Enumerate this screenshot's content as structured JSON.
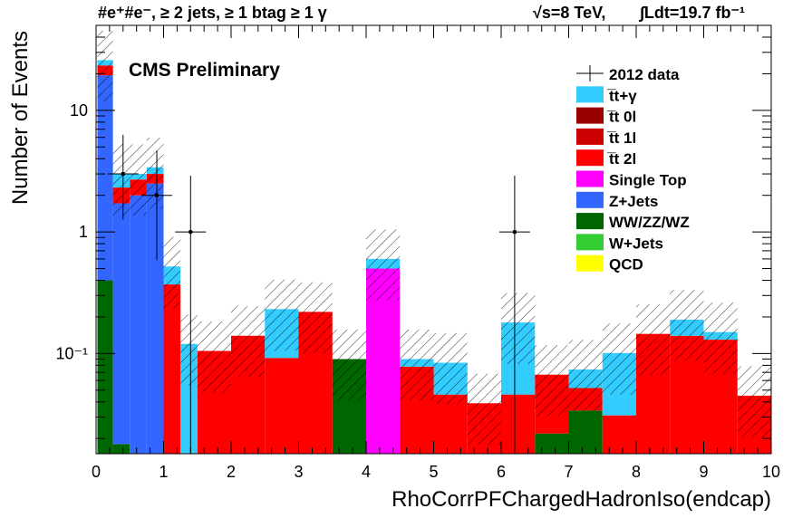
{
  "header": {
    "selection": "#e⁺#e⁻, ≥ 2 jets, ≥ 1 btag ≥ 1 γ",
    "energy": "√s=8 TeV,",
    "lumi": "∫Ldt=19.7 fb⁻¹"
  },
  "cms_label": "CMS Preliminary",
  "chart_data": {
    "type": "bar",
    "stacked": true,
    "log_y": true,
    "xlabel": "RhoCorrPFChargedHadronIso(endcap)",
    "ylabel": "Number of Events",
    "xlim": [
      0,
      10
    ],
    "ylim": [
      0.015,
      50
    ],
    "x_ticks": [
      "0",
      "1",
      "2",
      "3",
      "4",
      "5",
      "6",
      "7",
      "8",
      "9",
      "10"
    ],
    "y_ticks": [
      "10⁻¹",
      "1",
      "10"
    ],
    "y_tick_values": [
      0.1,
      1,
      10
    ],
    "bin_edges": [
      0,
      0.02,
      0.25,
      0.5,
      0.75,
      1.0,
      1.25,
      1.5,
      2.0,
      2.5,
      3.0,
      3.5,
      4.0,
      4.5,
      5.0,
      5.5,
      6.0,
      6.5,
      7.0,
      7.5,
      8.0,
      8.5,
      9.0,
      9.5,
      10.0
    ],
    "series": [
      {
        "name": "QCD",
        "color": "#ffff00",
        "values": [
          0,
          0,
          0,
          0,
          0,
          0,
          0,
          0,
          0,
          0,
          0,
          0,
          0,
          0,
          0,
          0,
          0,
          0,
          0,
          0,
          0,
          0,
          0,
          0
        ]
      },
      {
        "name": "W+Jets",
        "color": "#33cc33",
        "values": [
          0,
          0,
          0,
          0,
          0,
          0,
          0,
          0,
          0,
          0,
          0,
          0,
          0,
          0,
          0,
          0,
          0,
          0,
          0,
          0,
          0,
          0,
          0,
          0
        ]
      },
      {
        "name": "WW/ZZ/WZ",
        "color": "#006600",
        "values": [
          0,
          0.4,
          0.018,
          0,
          0,
          0,
          0,
          0,
          0,
          0,
          0,
          0.09,
          0,
          0,
          0,
          0,
          0,
          0.022,
          0.034,
          0,
          0,
          0,
          0,
          0
        ]
      },
      {
        "name": "Z+Jets",
        "color": "#3366ff",
        "values": [
          0,
          19,
          1.7,
          2.0,
          2.5,
          0,
          0,
          0,
          0,
          0,
          0,
          0,
          0,
          0,
          0,
          0,
          0,
          0,
          0,
          0,
          0,
          0,
          0,
          0
        ]
      },
      {
        "name": "Single Top",
        "color": "#ff00ff",
        "values": [
          0,
          0,
          0,
          0,
          0,
          0,
          0,
          0,
          0,
          0,
          0,
          0,
          0.5,
          0,
          0,
          0,
          0,
          0,
          0,
          0,
          0,
          0,
          0,
          0
        ]
      },
      {
        "name": "t̅t 2l",
        "color": "#ff0000",
        "values": [
          0,
          4,
          0.6,
          0.7,
          0.5,
          0.37,
          0,
          0.105,
          0.14,
          0.092,
          0.22,
          0,
          0,
          0.078,
          0.046,
          0.039,
          0.046,
          0.045,
          0.018,
          0.031,
          0.145,
          0.14,
          0.13,
          0.045
        ]
      },
      {
        "name": "t̅t 1l",
        "color": "#cc0000",
        "values": [
          0,
          0,
          0,
          0,
          0,
          0,
          0,
          0,
          0,
          0,
          0,
          0,
          0,
          0,
          0,
          0,
          0,
          0,
          0,
          0,
          0,
          0,
          0,
          0
        ]
      },
      {
        "name": "t̅t 0l",
        "color": "#990000",
        "values": [
          0,
          0,
          0,
          0,
          0,
          0,
          0,
          0,
          0,
          0,
          0,
          0,
          0,
          0,
          0,
          0,
          0,
          0,
          0,
          0,
          0,
          0,
          0,
          0
        ]
      },
      {
        "name": "t̅t+γ",
        "color": "#33ccff",
        "values": [
          0,
          2.5,
          0.7,
          0.3,
          0.4,
          0.15,
          0.12,
          0,
          0,
          0.14,
          0,
          0,
          0.1,
          0.012,
          0.038,
          0,
          0.134,
          0,
          0.022,
          0.07,
          0,
          0.05,
          0.02,
          0
        ]
      }
    ],
    "data_points": {
      "name": "2012 data",
      "x": [
        0.4,
        0.9,
        1.4,
        6.2
      ],
      "y": [
        3,
        2,
        1,
        1
      ]
    },
    "legend": {
      "placement": "top-right",
      "entries": [
        {
          "label": "2012 data",
          "style": "data"
        },
        {
          "label": "t̅t+γ",
          "color": "#33ccff"
        },
        {
          "label": "t̅t 0l",
          "color": "#990000"
        },
        {
          "label": "t̅t 1l",
          "color": "#cc0000"
        },
        {
          "label": "t̅t 2l",
          "color": "#ff0000"
        },
        {
          "label": "Single Top",
          "color": "#ff00ff"
        },
        {
          "label": "Z+Jets",
          "color": "#3366ff"
        },
        {
          "label": "WW/ZZ/WZ",
          "color": "#006600"
        },
        {
          "label": "W+Jets",
          "color": "#33cc33"
        },
        {
          "label": "QCD",
          "color": "#ffff00"
        }
      ]
    }
  }
}
